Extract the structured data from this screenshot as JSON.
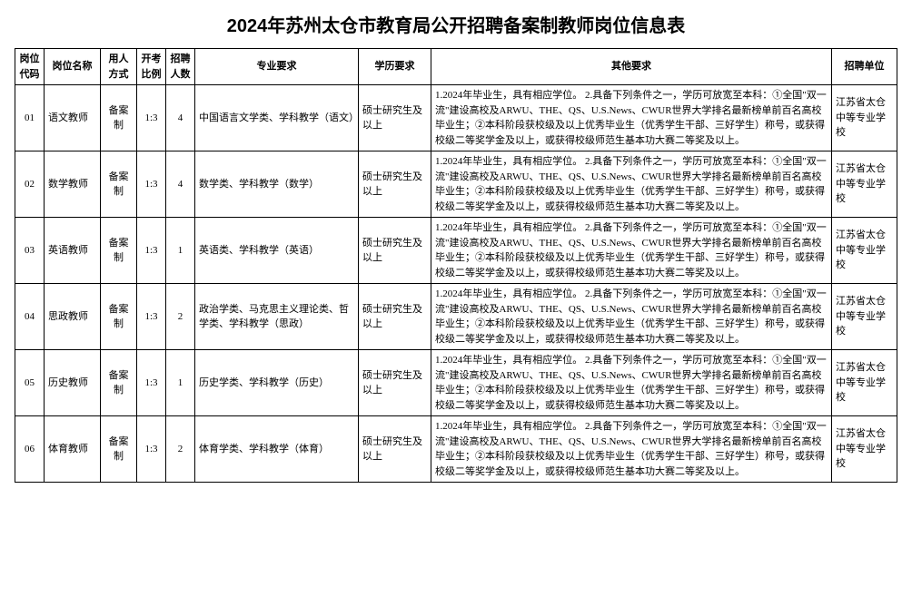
{
  "title": "2024年苏州太仓市教育局公开招聘备案制教师岗位信息表",
  "headers": {
    "code": "岗位代码",
    "name": "岗位名称",
    "method": "用人方式",
    "ratio": "开考比例",
    "count": "招聘人数",
    "major": "专业要求",
    "edu": "学历要求",
    "other": "其他要求",
    "unit": "招聘单位"
  },
  "edu_common": "硕士研究生及以上",
  "other_common": "1.2024年毕业生，具有相应学位。\n2.具备下列条件之一，学历可放宽至本科：①全国\"双一流\"建设高校及ARWU、THE、QS、U.S.News、CWUR世界大学排名最新榜单前百名高校毕业生；②本科阶段获校级及以上优秀毕业生（优秀学生干部、三好学生）称号，或获得校级二等奖学金及以上，或获得校级师范生基本功大赛二等奖及以上。",
  "unit_common": "江苏省太仓中等专业学校",
  "method_common": "备案制",
  "ratio_common": "1:3",
  "rows": [
    {
      "code": "01",
      "name": "语文教师",
      "count": "4",
      "major": "中国语言文学类、学科教学（语文）"
    },
    {
      "code": "02",
      "name": "数学教师",
      "count": "4",
      "major": "数学类、学科教学（数学）"
    },
    {
      "code": "03",
      "name": "英语教师",
      "count": "1",
      "major": "英语类、学科教学（英语）"
    },
    {
      "code": "04",
      "name": "思政教师",
      "count": "2",
      "major": "政治学类、马克思主义理论类、哲学类、学科教学（思政）"
    },
    {
      "code": "05",
      "name": "历史教师",
      "count": "1",
      "major": "历史学类、学科教学（历史）"
    },
    {
      "code": "06",
      "name": "体育教师",
      "count": "2",
      "major": "体育学类、学科教学（体育）"
    }
  ]
}
